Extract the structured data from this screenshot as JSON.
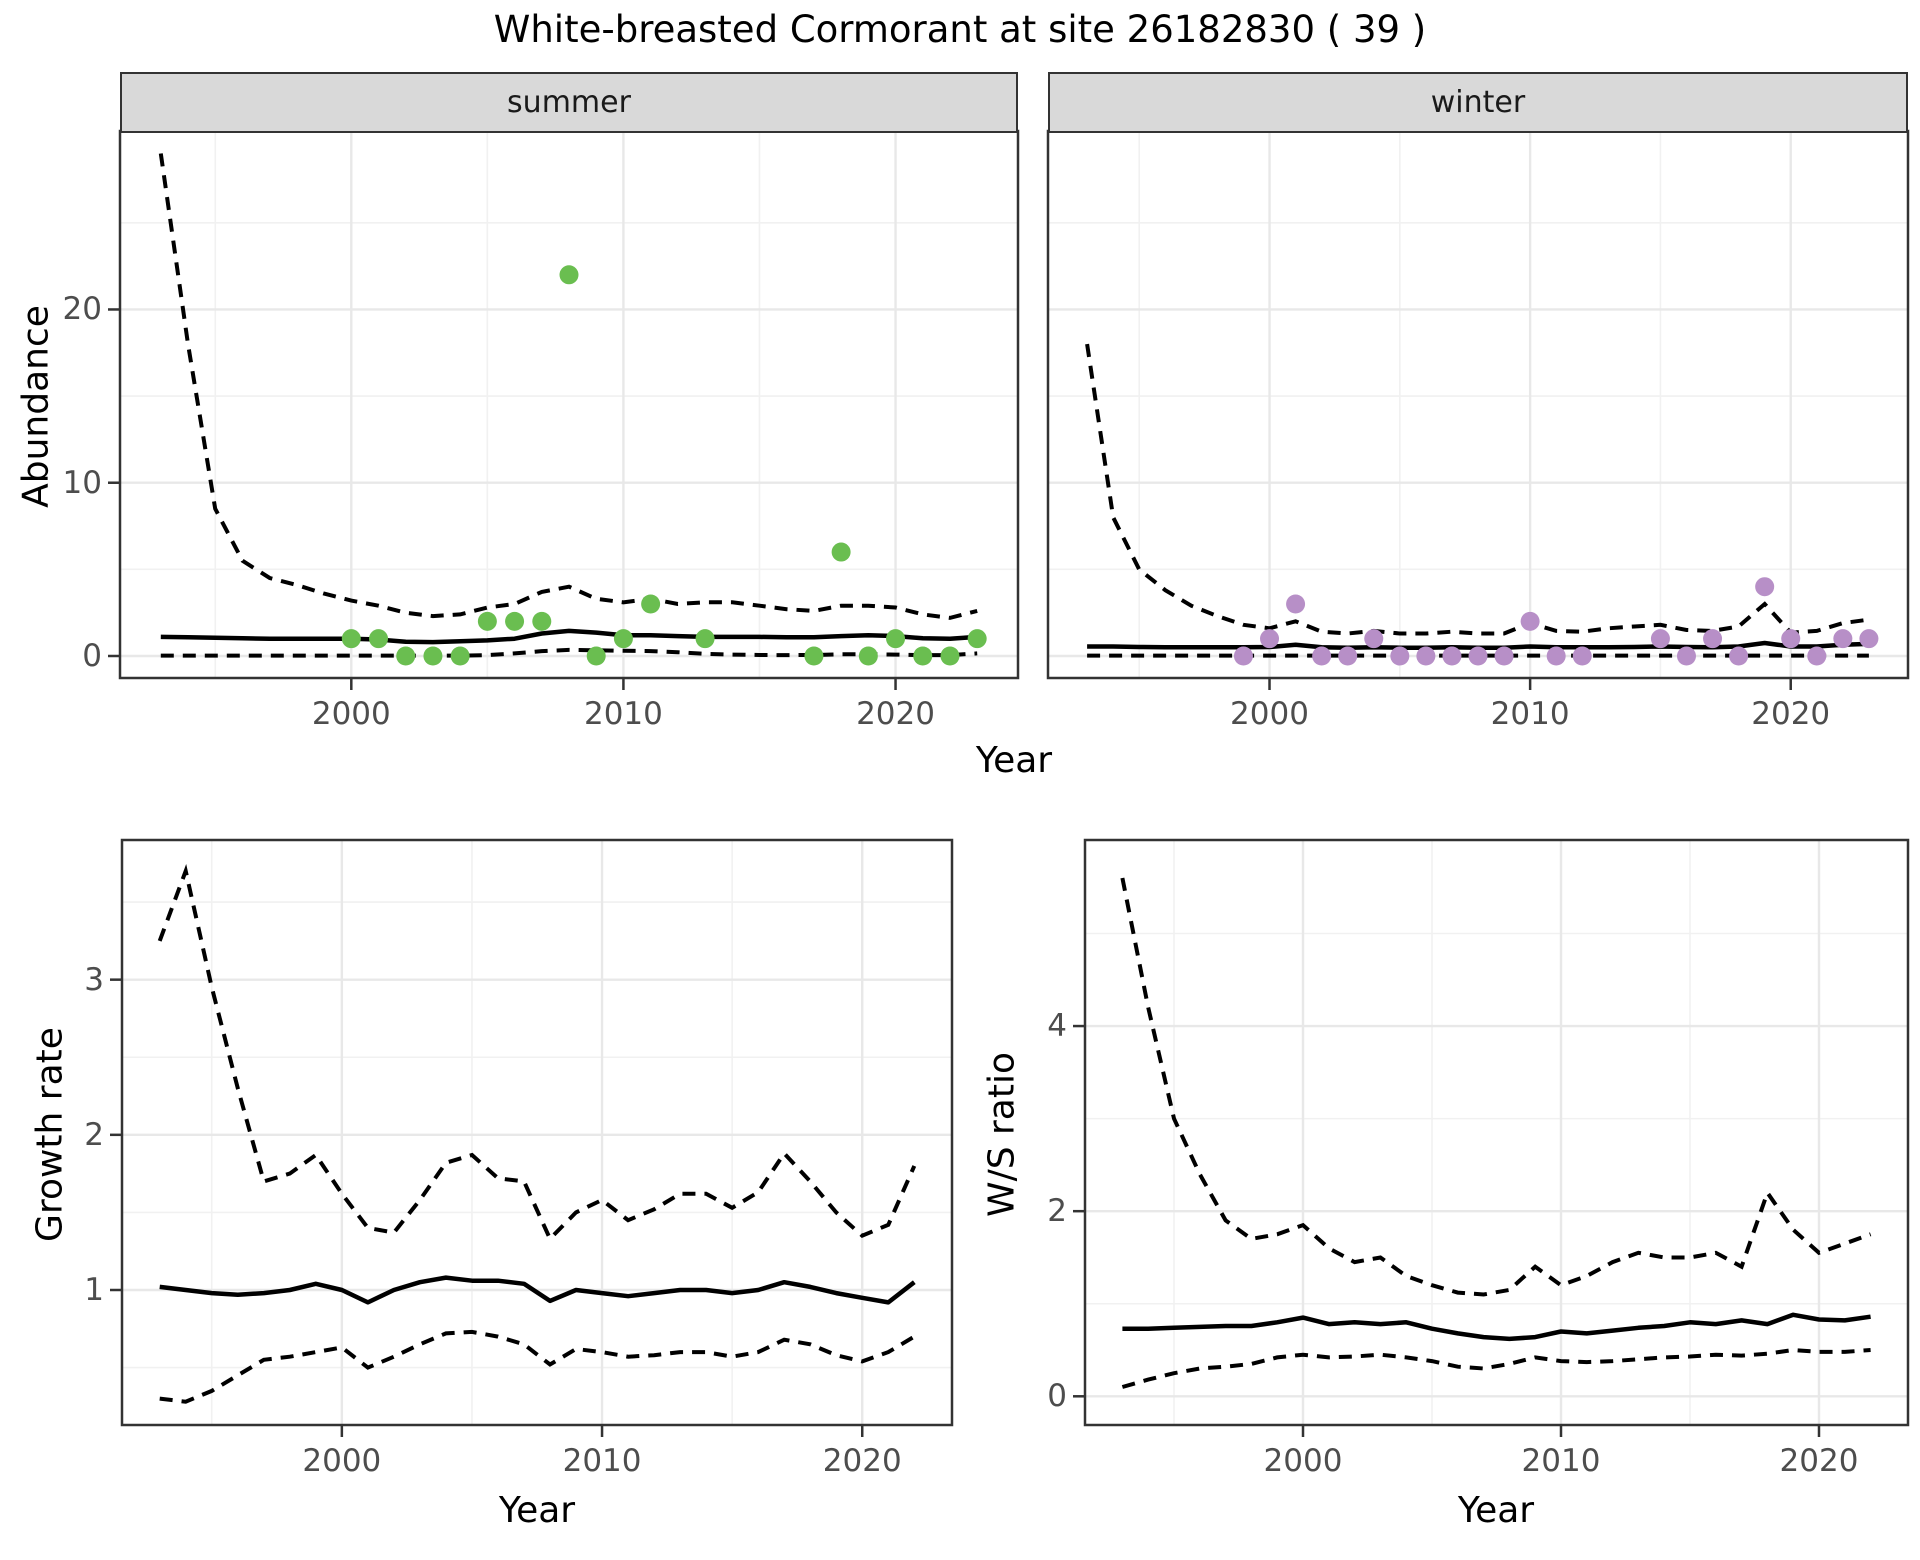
{
  "labels": {
    "title": "White-breasted Cormorant at site 26182830 ( 39 )",
    "facet_summer": "summer",
    "facet_winter": "winter",
    "abundance_axis": "Abundance",
    "growth_axis": "Growth rate",
    "ws_axis": "W/S ratio",
    "year_axis_top": "Year",
    "year_axis_growth": "Year",
    "year_axis_ws": "Year"
  },
  "colors": {
    "summer_point": "#6abe50",
    "winter_point": "#b78fc7",
    "line": "#000000",
    "grid_major": "#e8e8e8",
    "grid_minor": "#f1f1f1",
    "panel_border": "#333333",
    "strip_bg": "#d9d9d9",
    "axis_text": "#4d4d4d"
  },
  "chart_data": [
    {
      "id": "summer",
      "type": "scatter",
      "facet": "summer",
      "ylabel": "Abundance",
      "xlabel": "Year",
      "xlim": [
        1991.5,
        2024.5
      ],
      "ylim": [
        -1.27,
        30.3
      ],
      "xticks": [
        2000,
        2010,
        2020
      ],
      "xminor": [
        1995,
        2005,
        2015
      ],
      "yticks": [
        0,
        10,
        20
      ],
      "yminor": [
        5,
        15,
        25
      ],
      "years": [
        1993,
        1994,
        1995,
        1996,
        1997,
        1998,
        1999,
        2000,
        2001,
        2002,
        2003,
        2004,
        2005,
        2006,
        2007,
        2008,
        2009,
        2010,
        2011,
        2012,
        2013,
        2014,
        2015,
        2016,
        2017,
        2018,
        2019,
        2020,
        2021,
        2022,
        2023
      ],
      "upper": [
        29,
        18,
        8.5,
        5.5,
        4.5,
        4.1,
        3.6,
        3.2,
        2.9,
        2.5,
        2.3,
        2.4,
        2.8,
        3.0,
        3.7,
        4.0,
        3.3,
        3.1,
        3.3,
        3.0,
        3.1,
        3.1,
        2.9,
        2.7,
        2.6,
        2.9,
        2.9,
        2.8,
        2.4,
        2.2,
        2.6
      ],
      "median": [
        1.1,
        1.08,
        1.05,
        1.02,
        1.0,
        1.0,
        1.0,
        1.0,
        0.95,
        0.82,
        0.8,
        0.85,
        0.9,
        1.0,
        1.3,
        1.45,
        1.35,
        1.2,
        1.2,
        1.15,
        1.1,
        1.1,
        1.1,
        1.08,
        1.08,
        1.15,
        1.2,
        1.15,
        1.02,
        1.0,
        1.1
      ],
      "lower": [
        0.02,
        0.02,
        0.02,
        0.02,
        0.02,
        0.02,
        0.02,
        0.02,
        0.02,
        0.02,
        0.02,
        0.02,
        0.05,
        0.15,
        0.28,
        0.35,
        0.33,
        0.3,
        0.28,
        0.22,
        0.12,
        0.08,
        0.06,
        0.05,
        0.06,
        0.1,
        0.1,
        0.08,
        0.05,
        0.05,
        0.15
      ],
      "points": [
        [
          2000,
          1
        ],
        [
          2001,
          1
        ],
        [
          2002,
          0
        ],
        [
          2003,
          0
        ],
        [
          2004,
          0
        ],
        [
          2005,
          2
        ],
        [
          2006,
          2
        ],
        [
          2007,
          2
        ],
        [
          2008,
          22
        ],
        [
          2009,
          0
        ],
        [
          2010,
          1
        ],
        [
          2011,
          3
        ],
        [
          2013,
          1
        ],
        [
          2017,
          0
        ],
        [
          2018,
          6
        ],
        [
          2019,
          0
        ],
        [
          2020,
          1
        ],
        [
          2021,
          0
        ],
        [
          2022,
          0
        ],
        [
          2023,
          1
        ]
      ],
      "point_color": "#6abe50"
    },
    {
      "id": "winter",
      "type": "scatter",
      "facet": "winter",
      "ylabel": "Abundance",
      "xlabel": "Year",
      "xlim": [
        1991.5,
        2024.5
      ],
      "ylim": [
        -1.27,
        30.3
      ],
      "xticks": [
        2000,
        2010,
        2020
      ],
      "xminor": [
        1995,
        2005,
        2015
      ],
      "yticks": [],
      "yminor": [],
      "ygrid_major": [
        0,
        10,
        20
      ],
      "ygrid_minor": [
        5,
        15,
        25
      ],
      "years": [
        1993,
        1994,
        1995,
        1996,
        1997,
        1998,
        1999,
        2000,
        2001,
        2002,
        2003,
        2004,
        2005,
        2006,
        2007,
        2008,
        2009,
        2010,
        2011,
        2012,
        2013,
        2014,
        2015,
        2016,
        2017,
        2018,
        2019,
        2020,
        2021,
        2022,
        2023
      ],
      "upper": [
        18,
        8,
        5,
        3.8,
        2.9,
        2.3,
        1.8,
        1.6,
        2.0,
        1.4,
        1.3,
        1.45,
        1.3,
        1.3,
        1.4,
        1.3,
        1.3,
        1.9,
        1.45,
        1.4,
        1.6,
        1.7,
        1.8,
        1.5,
        1.45,
        1.7,
        3.0,
        1.35,
        1.45,
        1.9,
        2.1
      ],
      "median": [
        0.55,
        0.55,
        0.52,
        0.5,
        0.5,
        0.5,
        0.5,
        0.52,
        0.65,
        0.5,
        0.48,
        0.5,
        0.48,
        0.48,
        0.5,
        0.48,
        0.48,
        0.55,
        0.5,
        0.5,
        0.5,
        0.52,
        0.55,
        0.52,
        0.5,
        0.55,
        0.75,
        0.55,
        0.55,
        0.65,
        0.7
      ],
      "lower": [
        0.02,
        0.02,
        0.02,
        0.02,
        0.02,
        0.02,
        0.02,
        0.02,
        0.02,
        0.02,
        0.02,
        0.02,
        0.02,
        0.02,
        0.02,
        0.02,
        0.02,
        0.02,
        0.02,
        0.02,
        0.02,
        0.02,
        0.02,
        0.02,
        0.02,
        0.02,
        0.02,
        0.02,
        0.02,
        0.02,
        0.02
      ],
      "points": [
        [
          1999,
          0
        ],
        [
          2000,
          1
        ],
        [
          2001,
          3
        ],
        [
          2002,
          0
        ],
        [
          2003,
          0
        ],
        [
          2004,
          1
        ],
        [
          2005,
          0
        ],
        [
          2006,
          0
        ],
        [
          2007,
          0
        ],
        [
          2008,
          0
        ],
        [
          2009,
          0
        ],
        [
          2010,
          2
        ],
        [
          2011,
          0
        ],
        [
          2012,
          0
        ],
        [
          2015,
          1
        ],
        [
          2016,
          0
        ],
        [
          2017,
          1
        ],
        [
          2018,
          0
        ],
        [
          2019,
          4
        ],
        [
          2020,
          1
        ],
        [
          2021,
          0
        ],
        [
          2022,
          1
        ],
        [
          2023,
          1
        ]
      ],
      "point_color": "#b78fc7"
    },
    {
      "id": "growth",
      "type": "line",
      "ylabel": "Growth rate",
      "xlabel": "Year",
      "xlim": [
        1991.55,
        2023.45
      ],
      "ylim": [
        0.13,
        3.9
      ],
      "xticks": [
        2000,
        2010,
        2020
      ],
      "xminor": [
        1995,
        2005,
        2015
      ],
      "yticks": [
        1,
        2,
        3
      ],
      "yminor": [
        0.5,
        1.5,
        2.5,
        3.5
      ],
      "years": [
        1993,
        1994,
        1995,
        1996,
        1997,
        1998,
        1999,
        2000,
        2001,
        2002,
        2003,
        2004,
        2005,
        2006,
        2007,
        2008,
        2009,
        2010,
        2011,
        2012,
        2013,
        2014,
        2015,
        2016,
        2017,
        2018,
        2019,
        2020,
        2021,
        2022
      ],
      "upper": [
        3.25,
        3.7,
        2.95,
        2.3,
        1.7,
        1.75,
        1.87,
        1.62,
        1.4,
        1.37,
        1.58,
        1.82,
        1.87,
        1.72,
        1.7,
        1.33,
        1.5,
        1.58,
        1.45,
        1.52,
        1.62,
        1.62,
        1.53,
        1.63,
        1.88,
        1.7,
        1.5,
        1.35,
        1.42,
        1.8
      ],
      "median": [
        1.02,
        1.0,
        0.98,
        0.97,
        0.98,
        1.0,
        1.04,
        1.0,
        0.92,
        1.0,
        1.05,
        1.08,
        1.06,
        1.06,
        1.04,
        0.93,
        1.0,
        0.98,
        0.96,
        0.98,
        1.0,
        1.0,
        0.98,
        1.0,
        1.05,
        1.02,
        0.98,
        0.95,
        0.92,
        1.05
      ],
      "lower": [
        0.3,
        0.28,
        0.35,
        0.45,
        0.55,
        0.57,
        0.6,
        0.63,
        0.5,
        0.57,
        0.65,
        0.72,
        0.73,
        0.7,
        0.65,
        0.52,
        0.62,
        0.6,
        0.57,
        0.58,
        0.6,
        0.6,
        0.57,
        0.6,
        0.68,
        0.65,
        0.58,
        0.54,
        0.6,
        0.7
      ]
    },
    {
      "id": "ws",
      "type": "line",
      "ylabel": "W/S ratio",
      "xlabel": "Year",
      "xlim": [
        1991.55,
        2023.45
      ],
      "ylim": [
        -0.31,
        6.01
      ],
      "xticks": [
        2000,
        2010,
        2020
      ],
      "xminor": [
        1995,
        2005,
        2015
      ],
      "yticks": [
        0,
        2,
        4
      ],
      "yminor": [
        1,
        3,
        5
      ],
      "years": [
        1993,
        1994,
        1995,
        1996,
        1997,
        1998,
        1999,
        2000,
        2001,
        2002,
        2003,
        2004,
        2005,
        2006,
        2007,
        2008,
        2009,
        2010,
        2011,
        2012,
        2013,
        2014,
        2015,
        2016,
        2017,
        2018,
        2019,
        2020,
        2021,
        2022
      ],
      "upper": [
        5.6,
        4.2,
        3.0,
        2.4,
        1.9,
        1.7,
        1.75,
        1.85,
        1.6,
        1.45,
        1.5,
        1.3,
        1.2,
        1.12,
        1.1,
        1.15,
        1.4,
        1.2,
        1.3,
        1.45,
        1.55,
        1.5,
        1.5,
        1.55,
        1.4,
        2.2,
        1.8,
        1.55,
        1.65,
        1.75
      ],
      "median": [
        0.73,
        0.73,
        0.74,
        0.75,
        0.76,
        0.76,
        0.8,
        0.85,
        0.78,
        0.8,
        0.78,
        0.8,
        0.73,
        0.68,
        0.64,
        0.62,
        0.64,
        0.7,
        0.68,
        0.71,
        0.74,
        0.76,
        0.8,
        0.78,
        0.82,
        0.78,
        0.88,
        0.83,
        0.82,
        0.86
      ],
      "lower": [
        0.1,
        0.18,
        0.25,
        0.3,
        0.32,
        0.35,
        0.42,
        0.45,
        0.42,
        0.43,
        0.45,
        0.42,
        0.38,
        0.32,
        0.3,
        0.35,
        0.42,
        0.38,
        0.37,
        0.38,
        0.4,
        0.42,
        0.43,
        0.45,
        0.44,
        0.46,
        0.5,
        0.48,
        0.48,
        0.5
      ]
    }
  ]
}
